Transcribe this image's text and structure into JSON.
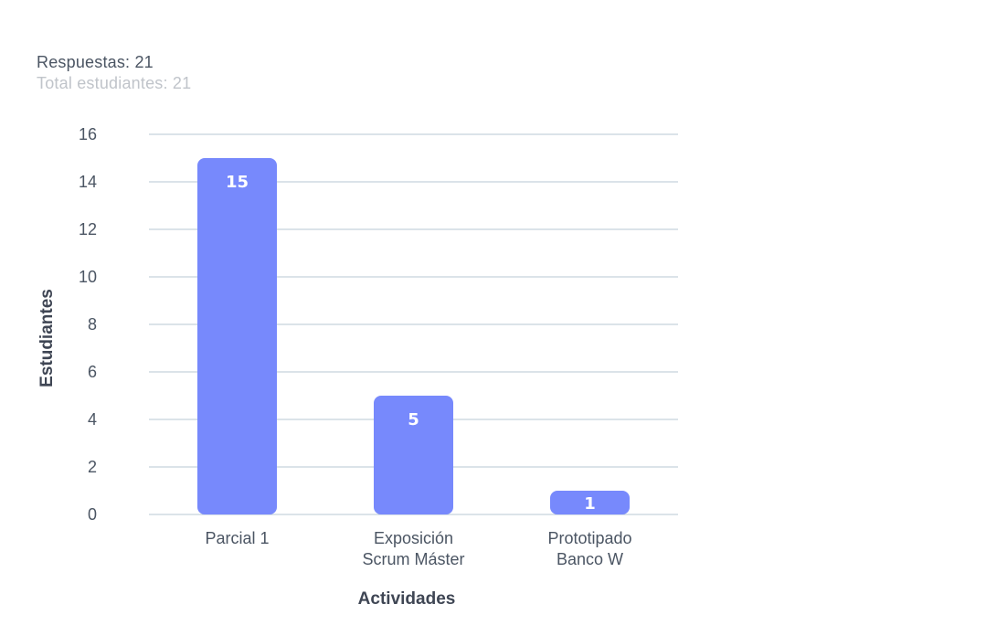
{
  "summary": {
    "responses": "Respuestas: 21",
    "total_students": "Total estudiantes: 21"
  },
  "chart_data": {
    "type": "bar",
    "categories": [
      [
        "Parcial 1"
      ],
      [
        "Exposición",
        "Scrum Máster"
      ],
      [
        "Prototipado",
        "Banco W"
      ]
    ],
    "values": [
      15,
      5,
      1
    ],
    "xlabel": "Actividades",
    "ylabel": "Estudiantes",
    "ylim": [
      0,
      16
    ],
    "yticks": [
      0,
      2,
      4,
      6,
      8,
      10,
      12,
      14,
      16
    ],
    "grid": true,
    "data_labels": true,
    "colors": {
      "bar": "#7789fc",
      "grid": "#b7c7d3",
      "text": "#4b5563"
    }
  }
}
